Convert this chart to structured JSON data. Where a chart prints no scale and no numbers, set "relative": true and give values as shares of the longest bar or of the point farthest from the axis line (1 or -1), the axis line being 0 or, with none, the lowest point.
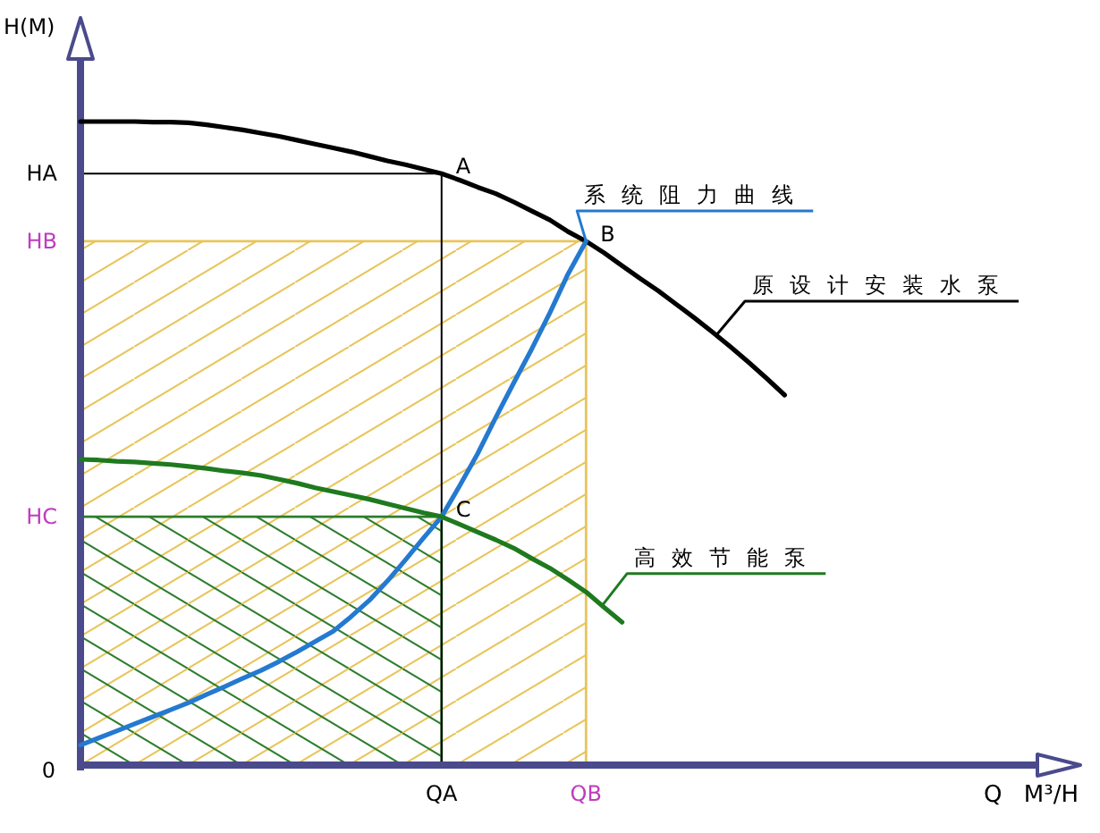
{
  "chart_data": {
    "type": "line",
    "relative": true,
    "xlabel": "Q M³/H",
    "ylabel": "H(M)",
    "categories": [
      null,
      null,
      null,
      null,
      null,
      null,
      null,
      null,
      null,
      null,
      null,
      null,
      null,
      null,
      null,
      null,
      null,
      null,
      null,
      null,
      "QA",
      null,
      null,
      null,
      null,
      null,
      null,
      null,
      "QB",
      null,
      null,
      null,
      null,
      null,
      null,
      null,
      null,
      null,
      null,
      null,
      null,
      null,
      null,
      null,
      null,
      null,
      null,
      null,
      null,
      null,
      null,
      null,
      null,
      null
    ],
    "series": [
      {
        "type": "area",
        "name": "HB",
        "color": "#e8c55a",
        "values": [
          0.814,
          0.814,
          0.814,
          0.814,
          0.814,
          0.814,
          0.814,
          0.814,
          0.814,
          0.814,
          0.814,
          0.814,
          0.814,
          0.814,
          0.814,
          0.814,
          0.814,
          0.814,
          0.814,
          0.814,
          0.814,
          0.814,
          0.814,
          0.814,
          0.814,
          0.814,
          0.814,
          0.814,
          0.814,
          null,
          null,
          null,
          null,
          null,
          null,
          null,
          null,
          null,
          null,
          null,
          null,
          null,
          null,
          null,
          null,
          null,
          null,
          null,
          null,
          null,
          null,
          null,
          null,
          null
        ]
      },
      {
        "type": "area",
        "name": "HC",
        "color": "#2e7d2e",
        "values": [
          0.386,
          0.386,
          0.386,
          0.386,
          0.386,
          0.386,
          0.386,
          0.386,
          0.386,
          0.386,
          0.386,
          0.386,
          0.386,
          0.386,
          0.386,
          0.386,
          0.386,
          0.386,
          0.386,
          0.386,
          0.386,
          null,
          null,
          null,
          null,
          null,
          null,
          null,
          null,
          null,
          null,
          null,
          null,
          null,
          null,
          null,
          null,
          null,
          null,
          null,
          null,
          null,
          null,
          null,
          null,
          null,
          null,
          null,
          null,
          null,
          null,
          null,
          null,
          null
        ]
      },
      {
        "name": "原设计安装水泵",
        "color": "#000000",
        "values": [
          1,
          1,
          1,
          1,
          0.999,
          0.999,
          0.998,
          0.995,
          0.991,
          0.987,
          0.982,
          0.977,
          0.971,
          0.965,
          0.959,
          0.953,
          0.946,
          0.939,
          0.933,
          0.926,
          0.919,
          0.909,
          0.898,
          0.888,
          0.875,
          0.861,
          0.847,
          0.829,
          0.814,
          0.796,
          0.776,
          0.756,
          0.737,
          0.716,
          0.695,
          0.673,
          0.65,
          0.626,
          0.601,
          0.575,
          null,
          null,
          null,
          null,
          null,
          null,
          null,
          null,
          null,
          null,
          null,
          null,
          null,
          null
        ]
      },
      {
        "name": "系统阻力曲线",
        "color": "#2479d0",
        "values": [
          0.031,
          0.042,
          0.053,
          0.064,
          0.075,
          0.086,
          0.097,
          0.11,
          0.122,
          0.135,
          0.147,
          0.161,
          0.176,
          0.192,
          0.208,
          0.231,
          0.256,
          0.286,
          0.319,
          0.353,
          0.386,
          0.434,
          0.484,
          0.54,
          0.594,
          0.647,
          0.703,
          0.763,
          0.814,
          null,
          null,
          null,
          null,
          null,
          null,
          null,
          null,
          null,
          null,
          null,
          null,
          null,
          null,
          null,
          null,
          null,
          null,
          null,
          null,
          null,
          null,
          null,
          null,
          null
        ]
      },
      {
        "name": "高效节能泵",
        "color": "#1f7a1f",
        "values": [
          0.475,
          0.474,
          0.472,
          0.471,
          0.469,
          0.467,
          0.464,
          0.461,
          0.457,
          0.454,
          0.45,
          0.444,
          0.438,
          0.431,
          0.425,
          0.419,
          0.413,
          0.406,
          0.399,
          0.392,
          0.386,
          0.374,
          0.362,
          0.35,
          0.337,
          0.321,
          0.306,
          0.288,
          0.269,
          0.245,
          0.222,
          null,
          null,
          null,
          null,
          null,
          null,
          null,
          null,
          null,
          null,
          null,
          null,
          null,
          null,
          null,
          null,
          null,
          null,
          null,
          null,
          null,
          null,
          null
        ]
      }
    ],
    "ref_lines": [
      {
        "axis": "y",
        "value": 0.919,
        "label": "HA"
      },
      {
        "axis": "x",
        "value": "QA"
      }
    ],
    "annotations": [
      {
        "text": "A",
        "x": "QA",
        "y": 0.919
      },
      {
        "text": "B",
        "x": "QB",
        "y": 0.814
      },
      {
        "text": "C",
        "x": "QA",
        "y": 0.386
      },
      "0"
    ]
  }
}
